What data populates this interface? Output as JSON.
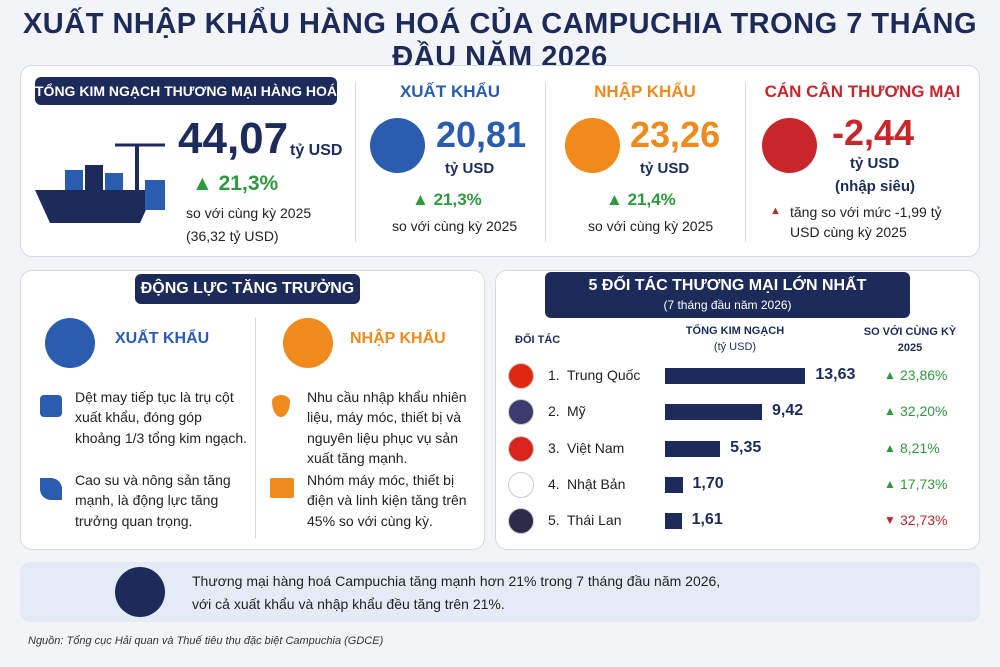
{
  "title": "XUẤT NHẬP KHẨU HÀNG HOÁ CỦA CAMPUCHIA TRONG 7 THÁNG ĐẦU NĂM 2026",
  "summary": {
    "total": {
      "heading": "TỔNG KIM NGẠCH THƯƠNG MẠI HÀNG HOÁ",
      "value": "44,07",
      "unit": "tỷ USD",
      "change": "21,3%",
      "note": "so với cùng kỳ 2025",
      "previous": "(36,32 tỷ USD)"
    },
    "export": {
      "heading": "XUẤT KHẨU",
      "value": "20,81",
      "unit": "tỷ USD",
      "change": "21,3%",
      "note": "so với cùng kỳ 2025"
    },
    "import": {
      "heading": "NHẬP KHẨU",
      "value": "23,26",
      "unit": "tỷ USD",
      "change": "21,4%",
      "note": "so với cùng kỳ 2025"
    },
    "balance": {
      "heading": "CÁN CÂN THƯƠNG MẠI",
      "value": "-2,44",
      "unit": "tỷ USD",
      "status": "(nhập siêu)",
      "note": "tăng so với mức -1,99 tỷ USD cùng kỳ 2025"
    }
  },
  "drivers": {
    "title": "ĐỘNG LỰC TĂNG TRƯỞNG",
    "export": {
      "heading": "XUẤT KHẨU",
      "items": [
        "Dệt may tiếp tục là trụ cột xuất khẩu, đóng góp khoảng 1/3 tổng kim ngạch.",
        "Cao su và nông sản tăng mạnh, là động lực tăng trưởng quan trọng."
      ]
    },
    "import": {
      "heading": "NHẬP KHẨU",
      "items": [
        "Nhu cầu nhập khẩu nhiên liệu, máy móc, thiết bị và nguyên liệu phục vụ sản xuất tăng mạnh.",
        "Nhóm máy móc, thiết bị điện và linh kiện tăng trên 45% so với cùng kỳ."
      ]
    }
  },
  "partners": {
    "title": "5 ĐỐI TÁC THƯƠNG MẠI LỚN NHẤT",
    "subtitle": "(7 tháng đầu năm 2026)",
    "col_partner": "ĐỐI TÁC",
    "col_value": "TỔNG KIM NGẠCH",
    "col_value_unit": "(tỷ USD)",
    "col_change": "SO VỚI CÙNG KỲ 2025",
    "bar_color": "#1c2b5a",
    "rows": [
      {
        "rank": "1.",
        "name": "Trung Quốc",
        "value": 13.63,
        "value_label": "13,63",
        "change": "23,86%",
        "trend": "up"
      },
      {
        "rank": "2.",
        "name": "Mỹ",
        "value": 9.42,
        "value_label": "9,42",
        "change": "32,20%",
        "trend": "up"
      },
      {
        "rank": "3.",
        "name": "Việt Nam",
        "value": 5.35,
        "value_label": "5,35",
        "change": "8,21%",
        "trend": "up"
      },
      {
        "rank": "4.",
        "name": "Nhật Bản",
        "value": 1.7,
        "value_label": "1,70",
        "change": "17,73%",
        "trend": "up"
      },
      {
        "rank": "5.",
        "name": "Thái Lan",
        "value": 1.61,
        "value_label": "1,61",
        "change": "32,73%",
        "trend": "down"
      }
    ]
  },
  "conclusion": [
    "Thương mại hàng hoá Campuchia tăng mạnh hơn 21% trong 7 tháng đầu năm 2026,",
    "với cả xuất khẩu và nhập khẩu đều tăng trên 21%."
  ],
  "source": "Nguồn: Tổng cục Hải quan và Thuế tiêu thụ đặc biệt Campuchia (GDCE)"
}
